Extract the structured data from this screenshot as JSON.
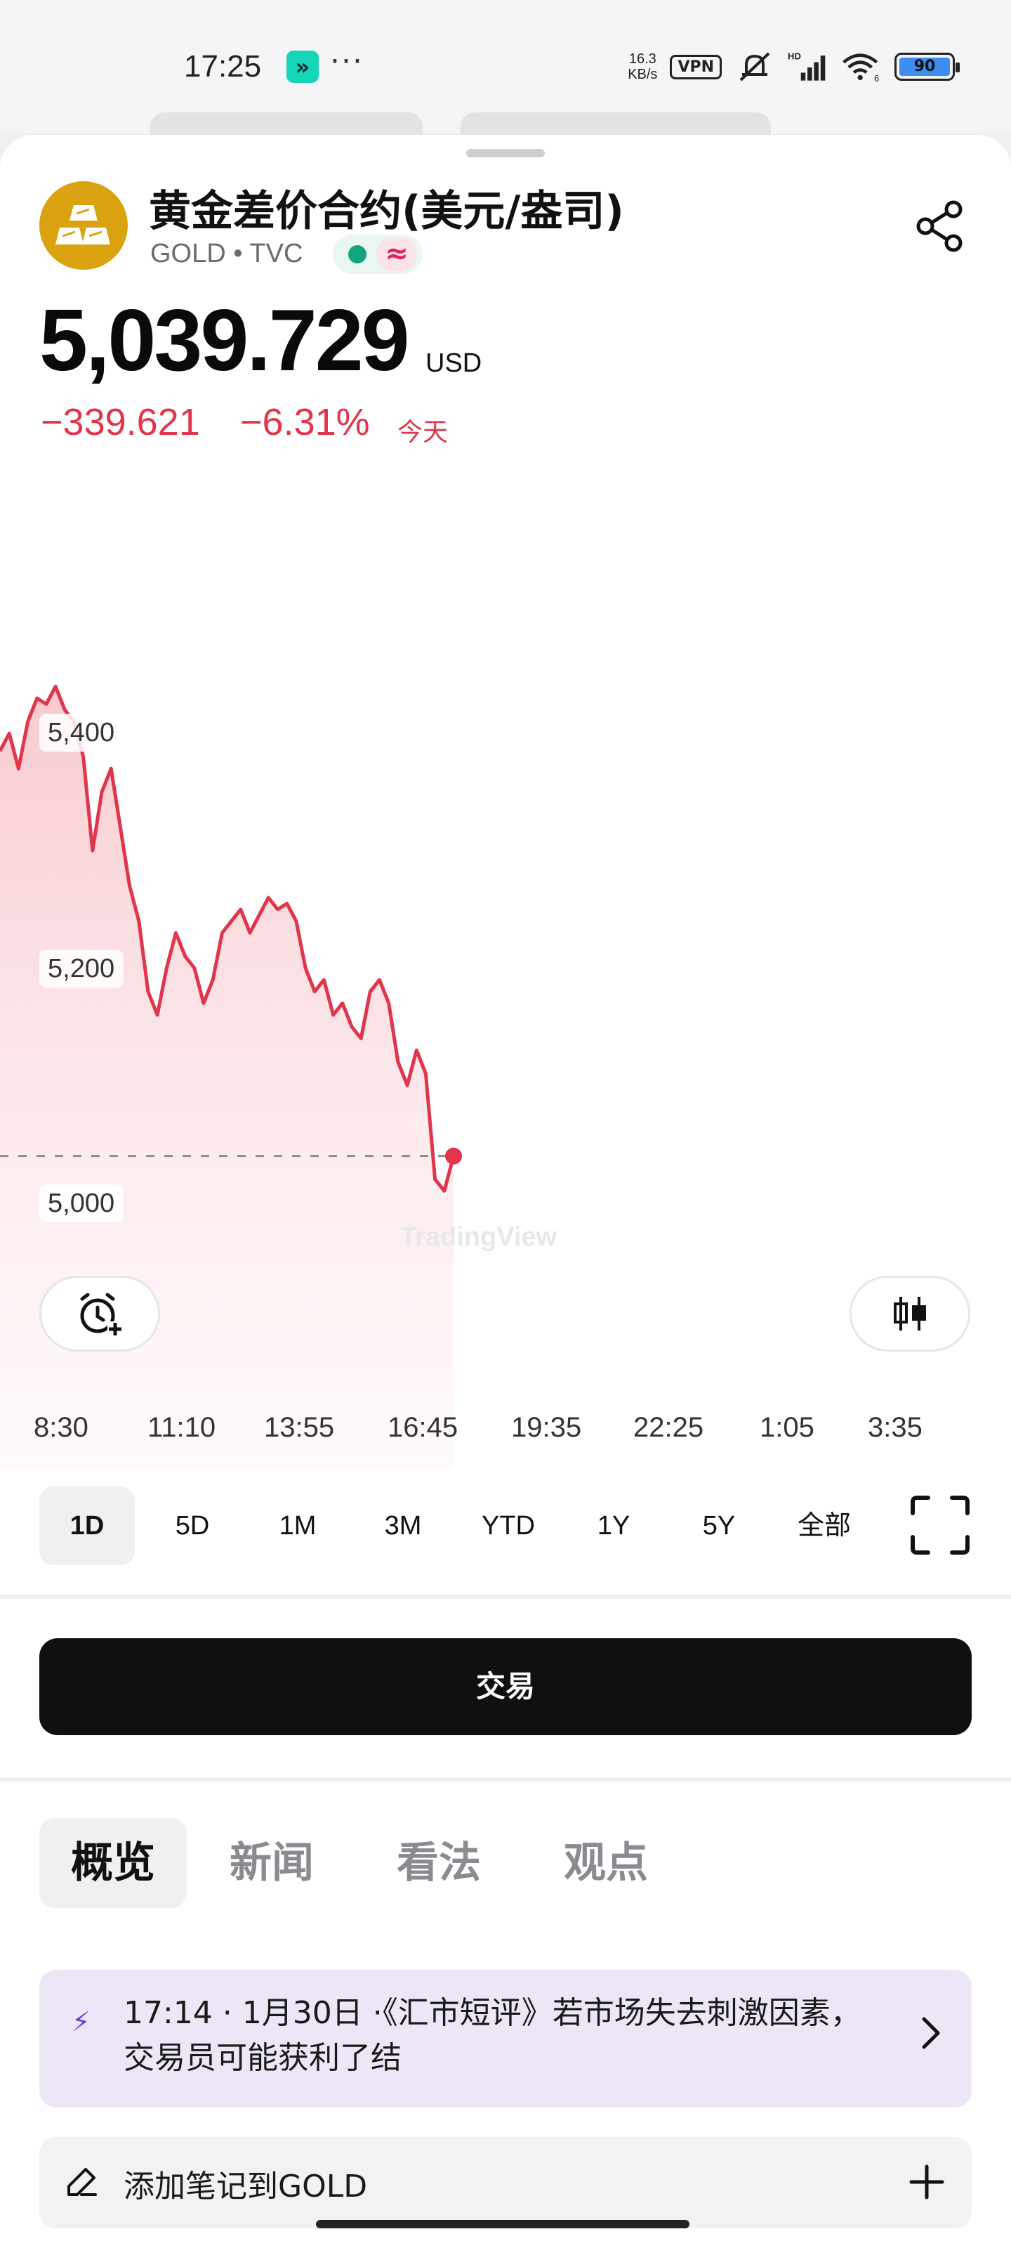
{
  "status_bar": {
    "time": "17:25",
    "app_badge": "»",
    "more": "···",
    "net_speed_value": "16.3",
    "net_speed_unit": "KB/s",
    "vpn": "VPN",
    "signal_badge": "HD",
    "wifi_badge": "6",
    "battery": "90"
  },
  "instrument": {
    "name": "黄金差价合约(美元/盎司)",
    "subtitle": "GOLD • TVC",
    "logo_icon": "gold-bars-icon",
    "brand_color": "#d9a20e"
  },
  "quote": {
    "price": "5,039.729",
    "currency": "USD",
    "change": "−339.621",
    "change_pct": "−6.31%",
    "period": "今天",
    "change_color": "#e0354a"
  },
  "chart_data": {
    "type": "area",
    "yticks": [
      "5,400",
      "5,200",
      "5,000"
    ],
    "xticks": [
      "8:30",
      "11:10",
      "13:55",
      "16:45",
      "19:35",
      "22:25",
      "1:05",
      "3:35"
    ],
    "reference_line": 5039.729,
    "line_color": "#e0354a",
    "watermark": "TradingView",
    "series": [
      {
        "values": [
          5385,
          5400,
          5370,
          5410,
          5430,
          5425,
          5440,
          5420,
          5410,
          5380,
          5300,
          5350,
          5370,
          5320,
          5270,
          5240,
          5180,
          5160,
          5200,
          5230,
          5210,
          5200,
          5170,
          5190,
          5230,
          5240,
          5250,
          5230,
          5245,
          5260,
          5250,
          5255,
          5240,
          5200,
          5180,
          5190,
          5160,
          5170,
          5150,
          5140,
          5180,
          5190,
          5170,
          5120,
          5100,
          5130,
          5110,
          5020,
          5010,
          5039.729
        ]
      }
    ]
  },
  "chart_controls": {
    "alert_icon": "add-alarm-icon",
    "chart_type_icon": "candlestick-icon",
    "ranges": [
      "1D",
      "5D",
      "1M",
      "3M",
      "YTD",
      "1Y",
      "5Y",
      "全部"
    ],
    "active_range": "1D",
    "fullscreen_icon": "fullscreen-icon"
  },
  "trade_button": "交易",
  "tabs": [
    "概览",
    "新闻",
    "看法",
    "观点"
  ],
  "news": {
    "text": "17:14 · 1月30日 ·《汇市短评》若市场失去刺激因素，交易员可能获利了结"
  },
  "note": {
    "text": "添加笔记到GOLD"
  }
}
